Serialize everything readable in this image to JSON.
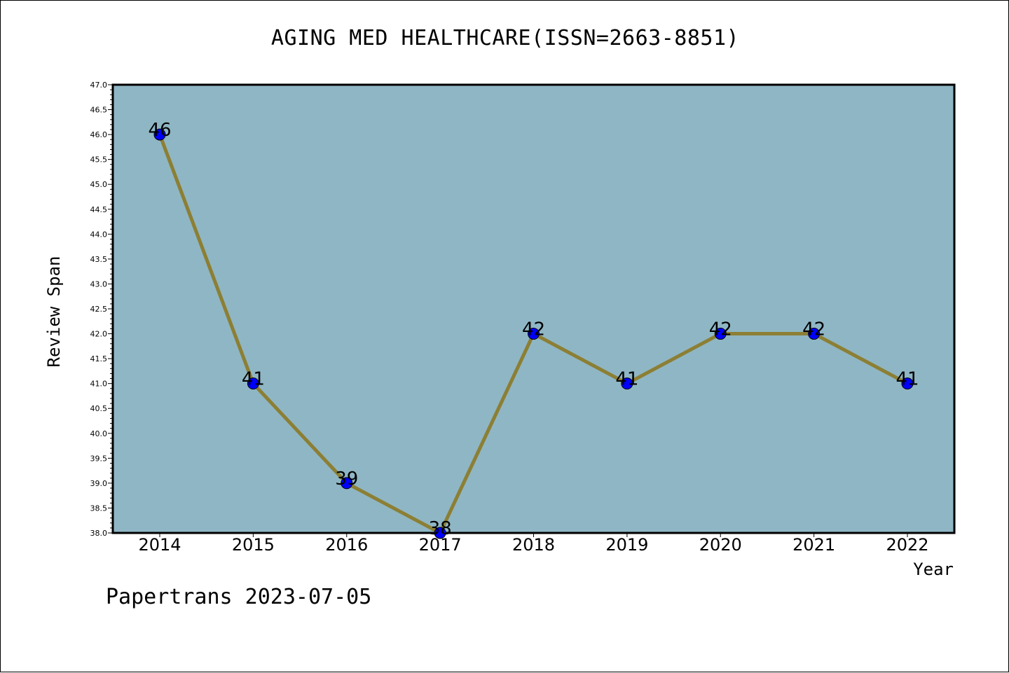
{
  "chart_data": {
    "type": "line",
    "title": "AGING MED HEALTHCARE(ISSN=2663-8851)",
    "xlabel": "Year",
    "ylabel": "Review Span",
    "categories": [
      "2014",
      "2015",
      "2016",
      "2017",
      "2018",
      "2019",
      "2020",
      "2021",
      "2022"
    ],
    "values": [
      46,
      41,
      39,
      38,
      42,
      41,
      42,
      42,
      41
    ],
    "data_labels": [
      "46",
      "41",
      "39",
      "38",
      "42",
      "41",
      "42",
      "42",
      "41"
    ],
    "ylim": [
      38.0,
      47.0
    ],
    "yticks": [
      "38.0",
      "38.5",
      "39.0",
      "39.5",
      "40.0",
      "40.5",
      "41.0",
      "41.5",
      "42.0",
      "42.5",
      "43.0",
      "43.5",
      "44.0",
      "44.5",
      "45.0",
      "45.5",
      "46.0",
      "46.5",
      "47.0"
    ],
    "grid": false,
    "legend": "none",
    "colors": {
      "plot_background": "#8fb6c4",
      "line": "#8c7f34",
      "marker": "#0000ff"
    }
  },
  "footer": {
    "text": "Papertrans 2023-07-05"
  }
}
